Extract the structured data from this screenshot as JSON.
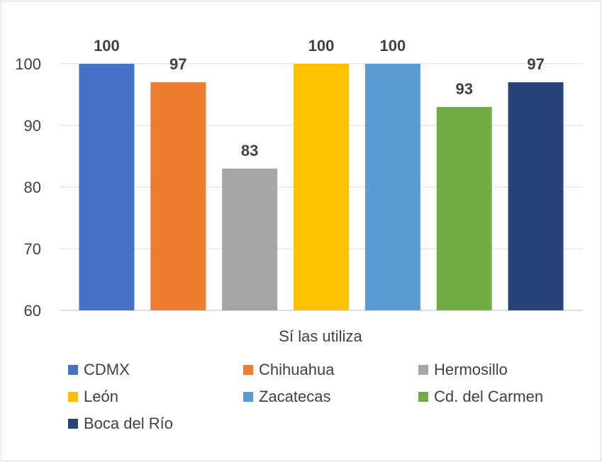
{
  "chart_data": {
    "type": "bar",
    "xlabel": "Sí las utiliza",
    "ylim": [
      60,
      100
    ],
    "yticks": [
      60,
      70,
      80,
      90,
      100
    ],
    "grid": true,
    "legend_position": "bottom",
    "series": [
      {
        "name": "CDMX",
        "value": 100,
        "color": "#4472c4"
      },
      {
        "name": "Chihuahua",
        "value": 97,
        "color": "#ed7d31"
      },
      {
        "name": "Hermosillo",
        "value": 83,
        "color": "#a5a5a5"
      },
      {
        "name": "León",
        "value": 100,
        "color": "#ffc000"
      },
      {
        "name": "Zacatecas",
        "value": 100,
        "color": "#5b9bd5"
      },
      {
        "name": "Cd. del Carmen",
        "value": 93,
        "color": "#70ad47"
      },
      {
        "name": "Boca del Río",
        "value": 97,
        "color": "#264478"
      }
    ]
  }
}
